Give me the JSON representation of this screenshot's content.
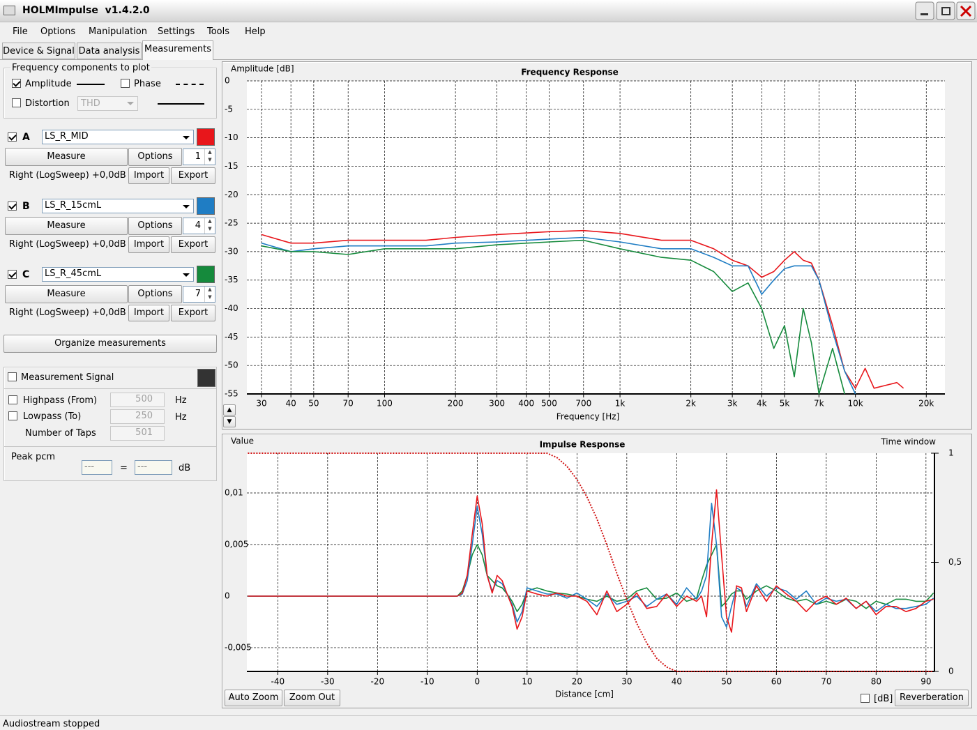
{
  "window": {
    "title": "HOLMImpulse  v1.4.2.0"
  },
  "menu": [
    "File",
    "Options",
    "Manipulation",
    "Settings",
    "Tools",
    "Help"
  ],
  "tabs": [
    "Device & Signal",
    "Data analysis",
    "Measurements"
  ],
  "components": {
    "title": "Frequency components to plot",
    "amplitude": "Amplitude",
    "amplitude_checked": true,
    "phase": "Phase",
    "phase_checked": false,
    "distortion": "Distortion",
    "distortion_checked": false,
    "distortion_type": "THD"
  },
  "measurements": [
    {
      "letter": "A",
      "checked": true,
      "measure": "Measure",
      "options": "Options",
      "count": "1",
      "info": "Right (LogSweep) +0,0dB",
      "import": "Import",
      "export": "Export"
    },
    {
      "letter": "B",
      "checked": true,
      "measure": "Measure",
      "options": "Options",
      "count": "4",
      "info": "Right (LogSweep) +0,0dB",
      "import": "Import",
      "export": "Export"
    },
    {
      "letter": "C",
      "checked": true,
      "measure": "Measure",
      "options": "Options",
      "count": "7",
      "info": "Right (LogSweep) +0,0dB",
      "import": "Import",
      "export": "Export"
    }
  ],
  "organize": "Organize measurements",
  "signal": {
    "label": "Measurement Signal",
    "checked": false,
    "color": "#333333",
    "highpass": "Highpass (From)",
    "highpass_checked": false,
    "highpass_value": "500",
    "lowpass": "Lowpass (To)",
    "lowpass_checked": false,
    "lowpass_value": "250",
    "unit": "Hz",
    "taps": "Number of Taps",
    "taps_value": "501"
  },
  "peak": {
    "title": "Peak pcm",
    "left": "---",
    "equals": "=",
    "right": "---",
    "unit": "dB"
  },
  "buttons": {
    "auto_zoom": "Auto Zoom",
    "zoom_out": "Zoom Out",
    "db": "[dB]",
    "db_checked": false,
    "reverberation": "Reverberation"
  },
  "status": "Audiostream stopped",
  "chart_data": [
    {
      "type": "line",
      "title": "Frequency Response",
      "y_label": "Amplitude [dB]",
      "x_label": "Frequency [Hz]",
      "xscale": "log",
      "grid": true,
      "xlim": [
        26,
        24000
      ],
      "ylim": [
        -55,
        0
      ],
      "xticks": [
        30,
        40,
        50,
        70,
        100,
        200,
        300,
        400,
        500,
        700,
        {
          "value": 1000,
          "label": "1k"
        },
        {
          "value": 2000,
          "label": "2k"
        },
        {
          "value": 3000,
          "label": "3k"
        },
        {
          "value": 4000,
          "label": "4k"
        },
        {
          "value": 5000,
          "label": "5k"
        },
        {
          "value": 7000,
          "label": "7k"
        },
        {
          "value": 10000,
          "label": "10k"
        },
        {
          "value": 20000,
          "label": "20k"
        }
      ],
      "yticks": [
        0,
        -5,
        -10,
        -15,
        -20,
        -25,
        -30,
        -35,
        -40,
        -45,
        -50,
        -55
      ],
      "x": [
        30,
        40,
        50,
        70,
        100,
        150,
        200,
        300,
        500,
        700,
        1000,
        1500,
        2000,
        2500,
        3000,
        3500,
        4000,
        4500,
        5000,
        5500,
        6000,
        6500,
        7000,
        8000,
        9000,
        10000,
        11000,
        12000,
        15000,
        16000
      ],
      "series": [
        {
          "name": "LS_R_MID",
          "color": "#e8161b",
          "values": [
            -27,
            -28.5,
            -28.5,
            -28,
            -28,
            -28,
            -27.5,
            -27,
            -26.5,
            -26.3,
            -26.8,
            -28,
            -28,
            -29.5,
            -31.5,
            -32.5,
            -34.5,
            -33.5,
            -31.5,
            -30,
            -31.5,
            -32,
            -35,
            -43,
            -51,
            -54,
            -50.5,
            -54,
            -53,
            -54
          ]
        },
        {
          "name": "LS_R_15cmL",
          "color": "#1f7dc4",
          "values": [
            -28.5,
            -30,
            -29.5,
            -29,
            -29,
            -29,
            -28.5,
            -28.3,
            -27.8,
            -27.5,
            -28.3,
            -29.5,
            -29.5,
            -31,
            -32.5,
            -32.5,
            -37.5,
            -35,
            -33,
            -32.5,
            -32.5,
            -32.5,
            -35,
            -44,
            -51,
            -55,
            null,
            null,
            null,
            null
          ]
        },
        {
          "name": "LS_R_45cmL",
          "color": "#158a3c",
          "values": [
            -29,
            -30,
            -30,
            -30.5,
            -29.5,
            -29.5,
            -29.5,
            -28.8,
            -28.3,
            -28,
            -29.5,
            -31,
            -31.5,
            -33.5,
            -37,
            -35.5,
            -40,
            -47,
            -43,
            -52,
            -40,
            -46,
            -55,
            -47,
            -55,
            null,
            null,
            null,
            null,
            null
          ]
        }
      ]
    },
    {
      "type": "line",
      "title": "Impulse Response",
      "y_label": "Value",
      "x_label": "Distance [cm]",
      "grid": true,
      "xlim": [
        -46.2,
        91.7
      ],
      "ylim": [
        -0.0073,
        0.01385
      ],
      "y2lim": [
        0,
        1
      ],
      "xticks": [
        -40,
        -30,
        -20,
        -10,
        0,
        10,
        20,
        30,
        40,
        50,
        60,
        70,
        80,
        90
      ],
      "yticks": [
        {
          "value": -0.005,
          "label": "-0,005"
        },
        0,
        {
          "value": 0.005,
          "label": "0,005"
        },
        {
          "value": 0.01,
          "label": "0,01"
        }
      ],
      "y2ticks": [
        0,
        {
          "value": 0.5,
          "label": "0,5"
        },
        1
      ],
      "x": [
        -46,
        -4,
        -3,
        -2,
        -1,
        0,
        1,
        2,
        3,
        4,
        5,
        6,
        7,
        8,
        9,
        10,
        12,
        14,
        16,
        18,
        20,
        22,
        24,
        26,
        28,
        30,
        32,
        34,
        36,
        38,
        40,
        42,
        44,
        45,
        46,
        47,
        48,
        49,
        50,
        51,
        52,
        53,
        54,
        56,
        58,
        60,
        62,
        64,
        66,
        68,
        70,
        72,
        74,
        76,
        78,
        80,
        82,
        84,
        86,
        88,
        90,
        91.5
      ],
      "series": [
        {
          "color": "#158a3c",
          "values": [
            0,
            0,
            0.0005,
            0.002,
            0.004,
            0.005,
            0.004,
            0.002,
            0.0015,
            0.001,
            0.0008,
            0.0002,
            -0.0005,
            -0.0015,
            -0.0008,
            0.0005,
            0.0008,
            0.0005,
            0.0003,
            0.0002,
            0,
            -0.0003,
            -0.0005,
            0,
            -0.0005,
            -0.0003,
            0.0005,
            0.0008,
            -0.0003,
            -0.0002,
            0.0003,
            -0.0005,
            -0.0002,
            0.0015,
            0.003,
            0.004,
            0.005,
            -0.001,
            -0.0005,
            0.0002,
            0.0005,
            0.0005,
            -0.0003,
            0.0005,
            0.001,
            0.0005,
            -0.0002,
            -0.0005,
            -0.0003,
            -0.0008,
            -0.0005,
            -0.0008,
            -0.0003,
            -0.0005,
            -0.0012,
            -0.0005,
            -0.0008,
            -0.0003,
            -0.0003,
            -0.0005,
            -0.0005,
            0.0003
          ]
        },
        {
          "color": "#1f7dc4",
          "values": [
            0,
            0,
            0.0002,
            0.0015,
            0.005,
            0.0087,
            0.006,
            0.002,
            0.0005,
            0.0015,
            0.0012,
            0.0002,
            -0.0008,
            -0.0025,
            -0.0015,
            0.0008,
            0.0005,
            0.0002,
            0.0002,
            -0.0002,
            0.0003,
            -0.0003,
            -0.001,
            0.0002,
            -0.0008,
            -0.0005,
            0,
            -0.001,
            -0.0003,
            0.0002,
            -0.0008,
            0.0008,
            -0.0003,
            0.0005,
            0.002,
            0.009,
            0.005,
            -0.002,
            -0.003,
            -0.001,
            0.0008,
            0.0005,
            -0.001,
            0.0012,
            0,
            0.0008,
            0.0005,
            -0.0003,
            0.0005,
            -0.0008,
            -0.0002,
            -0.0005,
            -0.0003,
            -0.0012,
            -0.0005,
            -0.0015,
            -0.0008,
            -0.0012,
            -0.0012,
            -0.001,
            -0.0008,
            -0.0002
          ]
        },
        {
          "color": "#e8161b",
          "values": [
            0,
            0,
            0.0003,
            0.002,
            0.006,
            0.0097,
            0.007,
            0.002,
            0.0003,
            0.002,
            0.0015,
            0.0002,
            -0.001,
            -0.0032,
            -0.002,
            0.0005,
            0.0002,
            0,
            0.0003,
            0,
            0,
            -0.0005,
            -0.0018,
            0.0005,
            -0.0015,
            -0.0008,
            0.0003,
            -0.0012,
            -0.001,
            0.0002,
            -0.001,
            0,
            -0.0005,
            0,
            -0.002,
            0.005,
            0.0103,
            0.004,
            -0.002,
            -0.0035,
            0.001,
            0.0008,
            -0.0015,
            0.001,
            -0.0005,
            0.001,
            0.0002,
            -0.0005,
            -0.0015,
            -0.0005,
            0,
            -0.0008,
            -0.0002,
            -0.0012,
            -0.0005,
            -0.0018,
            -0.001,
            -0.001,
            -0.0015,
            -0.0012,
            -0.0005,
            -0.0003
          ]
        },
        {
          "name": "Time window",
          "color": "#d01010",
          "axis": "y2",
          "dash": true,
          "values": [
            1,
            1,
            1,
            1,
            1,
            1,
            1,
            1,
            1,
            1,
            1,
            1,
            1,
            1,
            1,
            1,
            1,
            1,
            0.98,
            0.94,
            0.88,
            0.8,
            0.7,
            0.58,
            0.45,
            0.33,
            0.22,
            0.13,
            0.06,
            0.02,
            0,
            0,
            0,
            0,
            0,
            0,
            0,
            0,
            0,
            0,
            0,
            0,
            0,
            0,
            0,
            0,
            0,
            0,
            0,
            0,
            0,
            0,
            0,
            0,
            0,
            0,
            0,
            0,
            0,
            0,
            0,
            0
          ]
        }
      ]
    }
  ]
}
